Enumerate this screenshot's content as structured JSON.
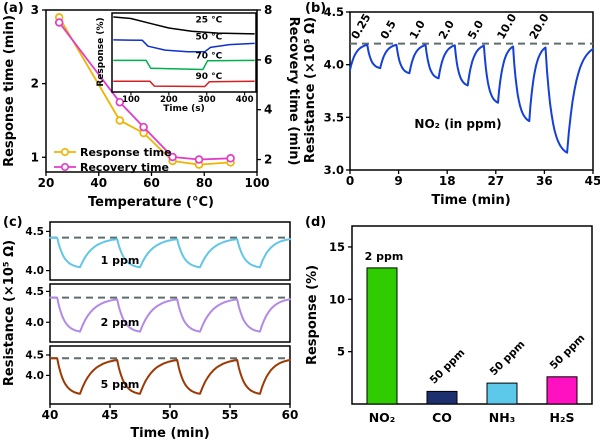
{
  "figure": {
    "panel_labels": {
      "a": "(a)",
      "b": "(b)",
      "c": "(c)",
      "d": "(d)"
    }
  },
  "colors": {
    "dashed_line": "#5e6e6e",
    "axis": "#000000",
    "background": "#ffffff"
  },
  "chart_data": [
    {
      "id": "a",
      "type": "line",
      "xlabel": "Temperature (°C)",
      "ylabel_left": "Response time (min)",
      "ylabel_right": "Recovery time (min)",
      "xlim": [
        20,
        100
      ],
      "xticks": [
        "20",
        "40",
        "60",
        "80",
        "100"
      ],
      "ylim_left": [
        0.8,
        3.0
      ],
      "yticks_left": [
        "1",
        "2",
        "3"
      ],
      "ylim_right": [
        1.5,
        8.0
      ],
      "yticks_right": [
        "2",
        "4",
        "6",
        "8"
      ],
      "legend": [
        {
          "label": "Response time",
          "color": "#f0b400"
        },
        {
          "label": "Recovery time",
          "color": "#e23cc8"
        }
      ],
      "series": [
        {
          "name": "Response time",
          "axis": "left",
          "color": "#f0b400",
          "x": [
            25,
            48,
            57,
            68,
            78,
            90
          ],
          "y": [
            2.9,
            1.5,
            1.33,
            0.95,
            0.9,
            0.93
          ]
        },
        {
          "name": "Recovery time",
          "axis": "right",
          "color": "#e23cc8",
          "x": [
            25,
            48,
            57,
            68,
            78,
            90
          ],
          "y": [
            7.5,
            4.3,
            3.3,
            2.1,
            2.0,
            2.05
          ]
        }
      ]
    },
    {
      "id": "a_inset",
      "type": "line",
      "xlabel": "Time (s)",
      "ylabel": "Response (%)",
      "xlim": [
        50,
        430
      ],
      "xticks": [
        "100",
        "200",
        "300",
        "400"
      ],
      "note": "y values normalized 0-1; curves vertically offset as drawn in figure",
      "series": [
        {
          "name": "25 °C",
          "color": "#000000",
          "label_pos": [
            0.58,
            0.92
          ],
          "x": [
            55,
            100,
            150,
            200,
            260,
            330,
            425
          ],
          "y": [
            0.95,
            0.93,
            0.87,
            0.81,
            0.77,
            0.745,
            0.735
          ]
        },
        {
          "name": "50 °C",
          "color": "#1030cc",
          "label_pos": [
            0.58,
            0.7
          ],
          "x": [
            55,
            130,
            145,
            190,
            250,
            295,
            310,
            360,
            425
          ],
          "y": [
            0.66,
            0.655,
            0.58,
            0.53,
            0.51,
            0.51,
            0.565,
            0.6,
            0.615
          ]
        },
        {
          "name": "70 °C",
          "color": "#00b050",
          "label_pos": [
            0.58,
            0.465
          ],
          "x": [
            55,
            140,
            152,
            290,
            302,
            425
          ],
          "y": [
            0.4,
            0.4,
            0.3,
            0.285,
            0.395,
            0.4
          ]
        },
        {
          "name": "90 °C",
          "color": "#d42020",
          "label_pos": [
            0.58,
            0.205
          ],
          "x": [
            55,
            150,
            162,
            295,
            307,
            425
          ],
          "y": [
            0.135,
            0.135,
            0.075,
            0.07,
            0.13,
            0.135
          ]
        }
      ]
    },
    {
      "id": "b",
      "type": "line",
      "xlabel": "Time (min)",
      "ylabel": "Resistance (×10⁵ Ω)",
      "annotation": "NO₂ (in ppm)",
      "xlim": [
        0,
        45
      ],
      "xticks": [
        "0",
        "9",
        "18",
        "27",
        "36",
        "45"
      ],
      "ylim": [
        3.0,
        4.5
      ],
      "yticks": [
        "3.0",
        "3.5",
        "4.0",
        "4.5"
      ],
      "baseline": 4.2,
      "start": [
        0,
        3.95
      ],
      "end": 45,
      "color": "#1540d8",
      "cycles": [
        {
          "conc": "0.25",
          "on": 3.2,
          "off": 5.6,
          "min": 3.96
        },
        {
          "conc": "0.5",
          "on": 8.6,
          "off": 11.0,
          "min": 3.91
        },
        {
          "conc": "1.0",
          "on": 14.0,
          "off": 16.4,
          "min": 3.86
        },
        {
          "conc": "2.0",
          "on": 19.4,
          "off": 21.8,
          "min": 3.79
        },
        {
          "conc": "5.0",
          "on": 24.8,
          "off": 27.4,
          "min": 3.62
        },
        {
          "conc": "10.0",
          "on": 30.2,
          "off": 33.2,
          "min": 3.44
        },
        {
          "conc": "20.0",
          "on": 36.2,
          "off": 40.2,
          "min": 3.13
        }
      ]
    },
    {
      "id": "c",
      "type": "line",
      "xlabel": "Time (min)",
      "ylabel": "Resistance (×10⁵ Ω)",
      "xlim": [
        40,
        60
      ],
      "xticks": [
        "40",
        "45",
        "50",
        "55",
        "60"
      ],
      "on_times": [
        40.6,
        45.6,
        50.6,
        55.6
      ],
      "exposure": 1.9,
      "end": 60,
      "subpanels": [
        {
          "label": "1 ppm",
          "color": "#62c6e8",
          "ylim": [
            3.88,
            4.62
          ],
          "yticks": [
            "4.0",
            "4.5"
          ],
          "baseline": 4.42,
          "min": 4.03
        },
        {
          "label": "2 ppm",
          "color": "#b28ae6",
          "ylim": [
            3.68,
            4.62
          ],
          "yticks": [
            "4.0",
            "4.5"
          ],
          "baseline": 4.4,
          "min": 3.83
        },
        {
          "label": "5 ppm",
          "color": "#9c3a06",
          "ylim": [
            3.3,
            4.72
          ],
          "yticks": [
            "4.0",
            "4.5"
          ],
          "baseline": 4.42,
          "min": 3.52
        }
      ]
    },
    {
      "id": "d",
      "type": "bar",
      "ylabel": "Response (%)",
      "ylim": [
        0,
        17
      ],
      "yticks": [
        "5",
        "10",
        "15"
      ],
      "categories": [
        "NO₂",
        "CO",
        "NH₃",
        "H₂S"
      ],
      "values": [
        13,
        1.2,
        2.0,
        2.6
      ],
      "bar_labels": [
        "2 ppm",
        "50 ppm",
        "50 ppm",
        "50 ppm"
      ],
      "colors": [
        "#2ecc00",
        "#1c2f6e",
        "#5cc8ea",
        "#ff10c0"
      ]
    }
  ]
}
